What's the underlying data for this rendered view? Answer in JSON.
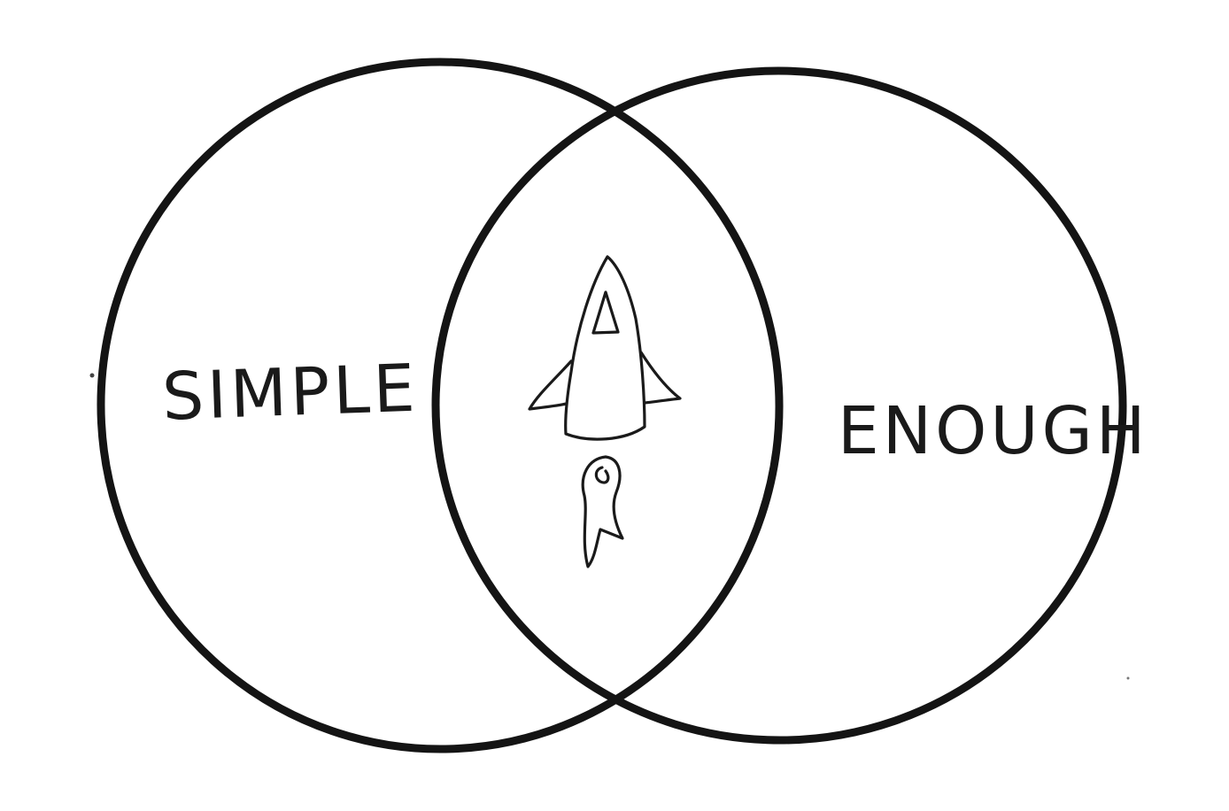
{
  "venn": {
    "left_set_label": "SIMPLE",
    "right_set_label": "ENOUGH",
    "intersection_icon": "rocket-icon"
  },
  "colors": {
    "stroke": "#141414",
    "background": "#ffffff"
  }
}
